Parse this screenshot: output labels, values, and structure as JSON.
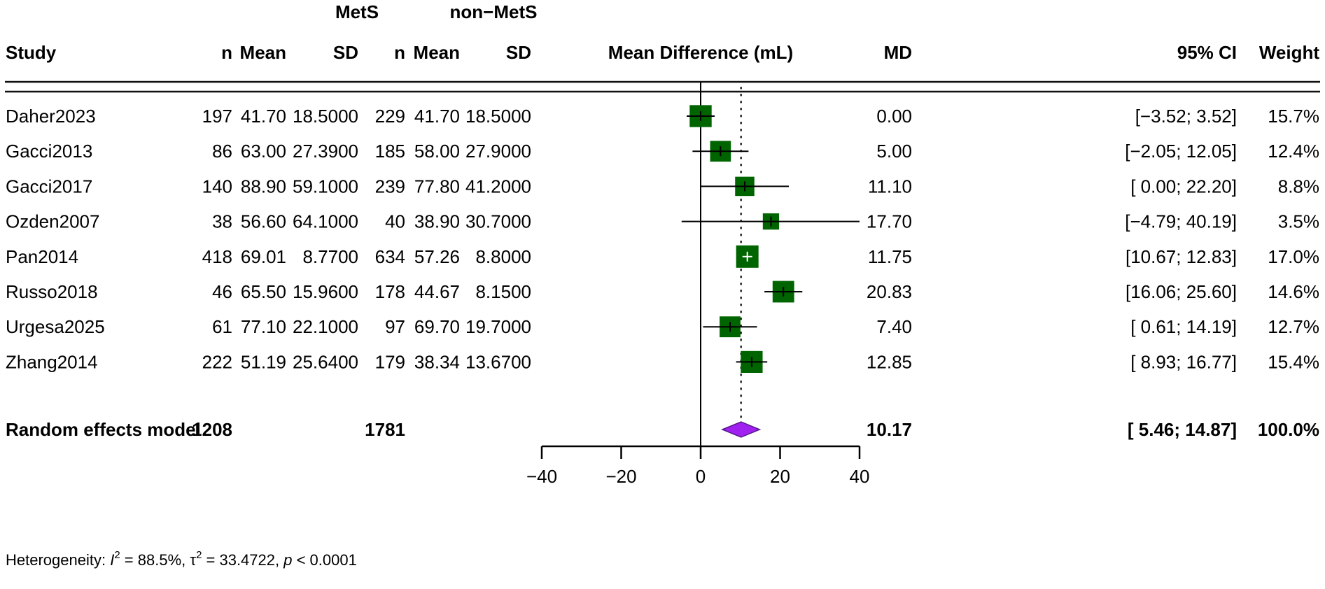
{
  "chart_data": {
    "type": "forest",
    "title": "",
    "group_headers": {
      "exp": "MetS",
      "ctrl": "non−MetS"
    },
    "columns": {
      "study": "Study",
      "n_e": "n",
      "mean_e": "Mean",
      "sd_e": "SD",
      "n_c": "n",
      "mean_c": "Mean",
      "sd_c": "SD",
      "plot": "Mean Difference (mL)",
      "md": "MD",
      "ci": "95% CI",
      "weight": "Weight"
    },
    "studies": [
      {
        "study": "Daher2023",
        "n_e": "197",
        "mean_e": "41.70",
        "sd_e": "18.5000",
        "n_c": "229",
        "mean_c": "41.70",
        "sd_c": "18.5000",
        "md": 0.0,
        "lower": -3.52,
        "upper": 3.52,
        "md_label": "0.00",
        "ci_label": "[−3.52;  3.52]",
        "weight": 15.7,
        "weight_label": "15.7%",
        "cross": "black"
      },
      {
        "study": "Gacci2013",
        "n_e": "86",
        "mean_e": "63.00",
        "sd_e": "27.3900",
        "n_c": "185",
        "mean_c": "58.00",
        "sd_c": "27.9000",
        "md": 5.0,
        "lower": -2.05,
        "upper": 12.05,
        "md_label": "5.00",
        "ci_label": "[−2.05; 12.05]",
        "weight": 12.4,
        "weight_label": "12.4%",
        "cross": "black"
      },
      {
        "study": "Gacci2017",
        "n_e": "140",
        "mean_e": "88.90",
        "sd_e": "59.1000",
        "n_c": "239",
        "mean_c": "77.80",
        "sd_c": "41.2000",
        "md": 11.1,
        "lower": 0.0,
        "upper": 22.2,
        "md_label": "11.10",
        "ci_label": "[ 0.00; 22.20]",
        "weight": 8.8,
        "weight_label": "8.8%",
        "cross": "black"
      },
      {
        "study": "Ozden2007",
        "n_e": "38",
        "mean_e": "56.60",
        "sd_e": "64.1000",
        "n_c": "40",
        "mean_c": "38.90",
        "sd_c": "30.7000",
        "md": 17.7,
        "lower": -4.79,
        "upper": 40.19,
        "md_label": "17.70",
        "ci_label": "[−4.79; 40.19]",
        "weight": 3.5,
        "weight_label": "3.5%",
        "cross": "black"
      },
      {
        "study": "Pan2014",
        "n_e": "418",
        "mean_e": "69.01",
        "sd_e": "8.7700",
        "n_c": "634",
        "mean_c": "57.26",
        "sd_c": "8.8000",
        "md": 11.75,
        "lower": 10.67,
        "upper": 12.83,
        "md_label": "11.75",
        "ci_label": "[10.67; 12.83]",
        "weight": 17.0,
        "weight_label": "17.0%",
        "cross": "white"
      },
      {
        "study": "Russo2018",
        "n_e": "46",
        "mean_e": "65.50",
        "sd_e": "15.9600",
        "n_c": "178",
        "mean_c": "44.67",
        "sd_c": "8.1500",
        "md": 20.83,
        "lower": 16.06,
        "upper": 25.6,
        "md_label": "20.83",
        "ci_label": "[16.06; 25.60]",
        "weight": 14.6,
        "weight_label": "14.6%",
        "cross": "black"
      },
      {
        "study": "Urgesa2025",
        "n_e": "61",
        "mean_e": "77.10",
        "sd_e": "22.1000",
        "n_c": "97",
        "mean_c": "69.70",
        "sd_c": "19.7000",
        "md": 7.4,
        "lower": 0.61,
        "upper": 14.19,
        "md_label": "7.40",
        "ci_label": "[ 0.61; 14.19]",
        "weight": 12.7,
        "weight_label": "12.7%",
        "cross": "black"
      },
      {
        "study": "Zhang2014",
        "n_e": "222",
        "mean_e": "51.19",
        "sd_e": "25.6400",
        "n_c": "179",
        "mean_c": "38.34",
        "sd_c": "13.6700",
        "md": 12.85,
        "lower": 8.93,
        "upper": 16.77,
        "md_label": "12.85",
        "ci_label": "[ 8.93; 16.77]",
        "weight": 15.4,
        "weight_label": "15.4%",
        "cross": "black"
      }
    ],
    "pooled": {
      "label": "Random effects model",
      "n_e": "1208",
      "n_c": "1781",
      "md": 10.17,
      "lower": 5.46,
      "upper": 14.87,
      "md_label": "10.17",
      "ci_label": "[ 5.46; 14.87]",
      "weight_label": "100.0%"
    },
    "heterogeneity": {
      "prefix": "Heterogeneity: ",
      "i2_symbol": "I",
      "i2_rest": " = 88.5%, ",
      "tau_symbol": "τ",
      "tau_rest": " = 33.4722, ",
      "p_symbol": "p",
      "p_rest": " < 0.0001",
      "sup": "2",
      "i2": "88.5%",
      "tau2": "33.4722",
      "p": "< 0.0001"
    },
    "xlim": [
      -40,
      40
    ],
    "xticks": [
      -40,
      -20,
      0,
      20,
      40
    ],
    "xtick_labels": [
      "−40",
      "−20",
      "0",
      "20",
      "40"
    ],
    "null_value": 0,
    "grid": false,
    "colors": {
      "square": "#006400",
      "diamond": "#a020f0",
      "diamond_border": "#551a8b",
      "line": "#000000"
    }
  }
}
